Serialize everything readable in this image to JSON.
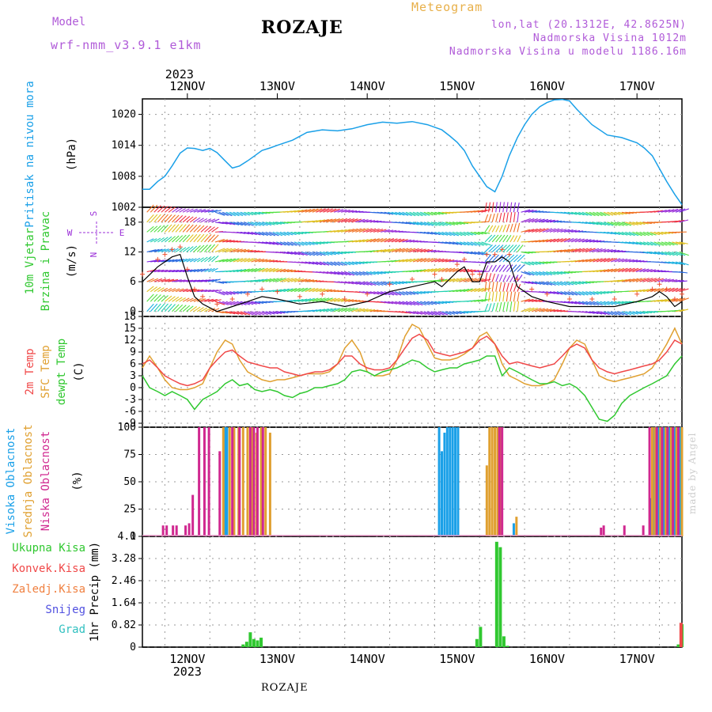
{
  "header": {
    "model_label": "Model",
    "model_name": "wrf-nmm_v3.9.1 e1km",
    "station": "ROZAJE",
    "meteogram_label": "Meteogram",
    "lonlat": "lon,lat (20.1312E, 42.8625N)",
    "altitude": "Nadmorska Visina 1012m",
    "altitude_model": "Nadmorska Visina u modelu 1186.16m",
    "made_by": "made by Angel",
    "footer_station": "ROZAJE"
  },
  "axis": {
    "year_label": "2023",
    "day_labels": [
      "12NOV",
      "13NOV",
      "14NOV",
      "15NOV",
      "16NOV",
      "17NOV"
    ]
  },
  "colors": {
    "pressure": "#1aa0e8",
    "temp2m": "#f04848",
    "sfc_temp": "#e0a030",
    "dewpt": "#30c830",
    "visoka": "#1aa0e8",
    "srednja": "#e0a030",
    "niska": "#d02890",
    "rain_total": "#30c830",
    "rain_conv": "#f04848"
  },
  "panel_labels": {
    "pressure": {
      "name": "Pritisak na nivou mora",
      "unit": "(hPa)"
    },
    "wind": {
      "name1": "10m Vjetar",
      "name2": "Brzina i Pravac",
      "unit": "(m/s)",
      "compass": [
        "S",
        "W",
        "E",
        "N"
      ]
    },
    "temp": {
      "name1": "2m Temp",
      "name2": "SFC Temp",
      "name3": "dewpt Temp",
      "unit": "(C)"
    },
    "cloud": {
      "name1": "Visoka Oblacnost",
      "name2": "Srednja Oblacnost",
      "name3": "Niska Oblacnost",
      "unit": "(%)"
    },
    "precip": {
      "unit": "1hr Precip (mm)",
      "legend": [
        "Ukupna Kisa",
        "Konvek.Kisa",
        "Zaledj.Kisa",
        "Snijeg",
        "Grad"
      ],
      "legend_colors": [
        "#30c830",
        "#f04848",
        "#f08040",
        "#5050e0",
        "#30c0c0"
      ]
    }
  },
  "chart_data": [
    {
      "type": "line",
      "title": "Pritisak na nivou mora",
      "ylabel": "(hPa)",
      "x_range_days": [
        11.5,
        17.5
      ],
      "ylim": [
        1002,
        1023
      ],
      "yticks": [
        "1002",
        "1008",
        "1014",
        "1020"
      ],
      "series": [
        {
          "x": [
            11.5,
            11.58,
            11.67,
            11.75,
            11.83,
            11.92,
            12.0,
            12.08,
            12.17,
            12.25,
            12.33,
            12.42,
            12.5,
            12.58,
            12.67,
            12.75,
            12.83,
            12.92,
            13.0,
            13.17,
            13.33,
            13.5,
            13.67,
            13.83,
            14.0,
            14.17,
            14.33,
            14.5,
            14.67,
            14.83,
            14.92,
            15.0,
            15.08,
            15.17,
            15.25,
            15.33,
            15.42,
            15.5,
            15.58,
            15.67,
            15.75,
            15.83,
            15.92,
            16.0,
            16.08,
            16.17,
            16.25,
            16.33,
            16.5,
            16.67,
            16.83,
            17.0,
            17.08,
            17.17,
            17.25,
            17.33,
            17.42,
            17.5
          ],
          "values": [
            1005.5,
            1005.5,
            1007,
            1008,
            1010,
            1012.5,
            1013.5,
            1013.4,
            1013,
            1013.4,
            1012.6,
            1011,
            1009.6,
            1010,
            1011,
            1012,
            1013,
            1013.5,
            1014,
            1015,
            1016.5,
            1017,
            1016.8,
            1017.2,
            1018,
            1018.5,
            1018.3,
            1018.6,
            1018,
            1017,
            1015.8,
            1014.6,
            1013,
            1010,
            1008,
            1006,
            1005,
            1008,
            1012,
            1015.5,
            1018,
            1020,
            1021.5,
            1022.3,
            1022.8,
            1022.9,
            1022.6,
            1021,
            1018,
            1016,
            1015.5,
            1014.5,
            1013.5,
            1012,
            1009.5,
            1007,
            1004.5,
            1002.5
          ]
        }
      ]
    },
    {
      "type": "line",
      "title": "10m Vjetar Brzina i Pravac",
      "ylabel": "(m/s)",
      "x_range_days": [
        11.5,
        17.5
      ],
      "ylim": [
        -1,
        21
      ],
      "yticks": [
        "0",
        "6",
        "12",
        "18"
      ],
      "series": [
        {
          "x": [
            11.5,
            11.67,
            11.75,
            11.83,
            11.92,
            12.0,
            12.08,
            12.17,
            12.33,
            12.5,
            12.67,
            12.83,
            13.0,
            13.25,
            13.5,
            13.75,
            14.0,
            14.25,
            14.5,
            14.75,
            14.83,
            15.0,
            15.08,
            15.17,
            15.25,
            15.33,
            15.42,
            15.5,
            15.58,
            15.67,
            15.83,
            16.0,
            16.25,
            16.5,
            16.75,
            17.0,
            17.17,
            17.25,
            17.33,
            17.42,
            17.5
          ],
          "values": [
            6,
            9,
            10,
            11,
            11.5,
            7,
            3,
            1.5,
            0,
            1,
            2,
            3,
            2.5,
            1.5,
            2,
            1,
            2,
            4,
            5,
            6,
            5,
            8,
            9,
            6,
            6,
            10,
            10,
            11,
            10,
            5,
            3,
            2,
            1,
            1,
            1,
            2,
            3,
            4,
            3,
            1,
            2
          ]
        }
      ]
    },
    {
      "type": "line",
      "title": "2m Temp / SFC Temp / dewpt Temp",
      "ylabel": "(C)",
      "x_range_days": [
        11.5,
        17.5
      ],
      "ylim": [
        -10,
        18
      ],
      "yticks": [
        "-9",
        "-6",
        "-3",
        "0",
        "3",
        "6",
        "9",
        "12",
        "15",
        "18"
      ],
      "series": [
        {
          "name": "2m Temp",
          "x": [
            11.5,
            11.58,
            11.67,
            11.75,
            11.83,
            11.92,
            12.0,
            12.08,
            12.17,
            12.25,
            12.33,
            12.42,
            12.5,
            12.58,
            12.67,
            12.75,
            12.83,
            12.92,
            13.0,
            13.08,
            13.17,
            13.25,
            13.33,
            13.42,
            13.5,
            13.58,
            13.67,
            13.75,
            13.83,
            13.92,
            14.0,
            14.08,
            14.17,
            14.25,
            14.33,
            14.42,
            14.5,
            14.58,
            14.67,
            14.75,
            14.83,
            14.92,
            15.0,
            15.08,
            15.17,
            15.25,
            15.33,
            15.42,
            15.5,
            15.58,
            15.67,
            15.75,
            15.83,
            15.92,
            16.0,
            16.08,
            16.17,
            16.25,
            16.33,
            16.42,
            16.5,
            16.58,
            16.67,
            16.75,
            16.83,
            16.92,
            17.0,
            17.08,
            17.17,
            17.25,
            17.33,
            17.42,
            17.5
          ],
          "values": [
            6,
            7,
            5,
            3,
            2,
            1,
            0.5,
            1,
            2,
            5,
            7,
            9,
            9.5,
            8,
            6.5,
            6,
            5.5,
            5,
            5,
            4,
            3.5,
            3,
            3.5,
            4,
            4,
            4.5,
            6,
            8,
            8,
            6,
            5,
            4.5,
            4.5,
            5,
            7,
            10,
            12.5,
            13.5,
            12,
            9,
            8.5,
            8,
            8.5,
            9,
            10,
            12,
            13,
            11,
            8,
            6,
            6.5,
            6,
            5.5,
            5,
            5.5,
            6,
            8,
            10,
            11,
            10,
            7,
            5,
            4,
            3.5,
            4,
            4.5,
            5,
            5.5,
            6,
            7,
            9,
            12,
            11
          ]
        },
        {
          "name": "SFC Temp",
          "x": [
            11.5,
            11.58,
            11.67,
            11.75,
            11.83,
            11.92,
            12.0,
            12.08,
            12.17,
            12.25,
            12.33,
            12.42,
            12.5,
            12.58,
            12.67,
            12.75,
            12.83,
            12.92,
            13.0,
            13.08,
            13.17,
            13.25,
            13.33,
            13.42,
            13.5,
            13.58,
            13.67,
            13.75,
            13.83,
            13.92,
            14.0,
            14.08,
            14.17,
            14.25,
            14.33,
            14.42,
            14.5,
            14.58,
            14.67,
            14.75,
            14.83,
            14.92,
            15.0,
            15.08,
            15.17,
            15.25,
            15.33,
            15.42,
            15.5,
            15.58,
            15.67,
            15.75,
            15.83,
            15.92,
            16.0,
            16.08,
            16.17,
            16.25,
            16.33,
            16.42,
            16.5,
            16.58,
            16.67,
            16.75,
            16.83,
            16.92,
            17.0,
            17.08,
            17.17,
            17.25,
            17.33,
            17.42,
            17.5
          ],
          "values": [
            5,
            8,
            5,
            2,
            0,
            -0.5,
            -0.5,
            0,
            1,
            5,
            9,
            12,
            11,
            7,
            4,
            3,
            2,
            1.5,
            2,
            2,
            2.5,
            3,
            3.5,
            3.5,
            3.5,
            4,
            6,
            10,
            12,
            9,
            4,
            3,
            3,
            3.5,
            7,
            13,
            16,
            15,
            11,
            7.5,
            7,
            7,
            7.5,
            8.5,
            10,
            13,
            14,
            11,
            6,
            3,
            2,
            1,
            0.5,
            0.5,
            1,
            2,
            6,
            10,
            12,
            11,
            7,
            3,
            2,
            1.5,
            2,
            2.5,
            3,
            3.5,
            5,
            8,
            11,
            15,
            11
          ]
        },
        {
          "name": "dewpt Temp",
          "x": [
            11.5,
            11.58,
            11.67,
            11.75,
            11.83,
            11.92,
            12.0,
            12.08,
            12.17,
            12.25,
            12.33,
            12.42,
            12.5,
            12.58,
            12.67,
            12.75,
            12.83,
            12.92,
            13.0,
            13.08,
            13.17,
            13.25,
            13.33,
            13.42,
            13.5,
            13.58,
            13.67,
            13.75,
            13.83,
            13.92,
            14.0,
            14.08,
            14.17,
            14.25,
            14.33,
            14.42,
            14.5,
            14.58,
            14.67,
            14.75,
            14.83,
            14.92,
            15.0,
            15.08,
            15.17,
            15.25,
            15.33,
            15.42,
            15.5,
            15.58,
            15.67,
            15.75,
            15.83,
            15.92,
            16.0,
            16.08,
            16.17,
            16.25,
            16.33,
            16.42,
            16.5,
            16.58,
            16.67,
            16.75,
            16.83,
            16.92,
            17.0,
            17.08,
            17.17,
            17.25,
            17.33,
            17.42,
            17.5
          ],
          "values": [
            3,
            0,
            -1,
            -2,
            -1,
            -2,
            -3,
            -5.5,
            -3,
            -2,
            -1,
            1,
            2,
            0.5,
            1,
            -0.5,
            -1,
            -0.5,
            -1,
            -2,
            -2.5,
            -1.5,
            -1,
            0,
            0,
            0.5,
            1,
            2,
            4,
            4.5,
            4,
            3,
            4,
            4.5,
            5,
            6,
            7,
            6.5,
            5,
            4,
            4.5,
            5,
            5,
            6,
            6.5,
            7,
            8,
            8,
            3,
            5,
            4,
            3,
            2,
            1,
            1,
            1.5,
            0.5,
            1,
            0,
            -2,
            -5,
            -8,
            -8.5,
            -7,
            -4,
            -2,
            -1,
            0,
            1,
            2,
            3,
            6,
            8
          ]
        }
      ]
    },
    {
      "type": "bar",
      "title": "Oblacnost",
      "ylabel": "(%)",
      "x_range_days": [
        11.5,
        17.5
      ],
      "ylim": [
        0,
        100
      ],
      "yticks": [
        "0",
        "25",
        "50",
        "75",
        "100"
      ],
      "series": [
        {
          "name": "Visoka Oblacnost",
          "x": [
            12.42,
            12.44,
            14.8,
            14.83,
            14.86,
            14.89,
            14.92,
            14.95,
            14.98,
            15.01,
            15.63,
            17.15,
            17.18,
            17.21,
            17.24,
            17.3,
            17.36,
            17.42,
            17.48
          ],
          "values": [
            100,
            100,
            100,
            78,
            95,
            100,
            100,
            100,
            100,
            100,
            12,
            35,
            100,
            100,
            100,
            100,
            100,
            100,
            100
          ]
        },
        {
          "name": "Srednja Oblacnost",
          "x": [
            12.4,
            12.47,
            12.52,
            12.57,
            12.62,
            12.67,
            12.72,
            12.77,
            12.82,
            12.87,
            12.92,
            15.33,
            15.36,
            15.39,
            15.42,
            15.45,
            15.48,
            15.66,
            17.17,
            17.2,
            17.26,
            17.32,
            17.38,
            17.44,
            17.5
          ],
          "values": [
            100,
            100,
            100,
            100,
            100,
            100,
            100,
            95,
            100,
            100,
            95,
            65,
            100,
            100,
            100,
            100,
            100,
            18,
            100,
            100,
            100,
            100,
            100,
            100,
            100
          ]
        },
        {
          "name": "Niska Oblacnost",
          "x": [
            11.73,
            11.77,
            11.84,
            11.88,
            11.98,
            12.02,
            12.06,
            12.13,
            12.19,
            12.24,
            12.36,
            12.5,
            12.58,
            12.7,
            12.74,
            12.78,
            12.84,
            15.47,
            15.5,
            16.6,
            16.63,
            16.86,
            17.97,
            17.07,
            17.14,
            17.22,
            17.28,
            17.34,
            17.4,
            17.46
          ],
          "values": [
            10,
            10,
            10,
            10,
            10,
            12,
            38,
            100,
            100,
            100,
            78,
            100,
            100,
            100,
            100,
            100,
            100,
            100,
            100,
            8,
            10,
            10,
            10,
            10,
            100,
            100,
            100,
            100,
            100,
            100
          ]
        }
      ]
    },
    {
      "type": "bar",
      "title": "1hr Precip",
      "ylabel": "1hr Precip (mm)",
      "x_range_days": [
        11.5,
        17.5
      ],
      "ylim": [
        0,
        4.1
      ],
      "yticks": [
        "0",
        "0.82",
        "1.64",
        "2.46",
        "3.28",
        "4.1"
      ],
      "series": [
        {
          "name": "Ukupna Kisa",
          "x": [
            12.62,
            12.66,
            12.7,
            12.74,
            12.78,
            12.82,
            15.22,
            15.26,
            15.44,
            15.48,
            15.52,
            15.56,
            17.46,
            17.5
          ],
          "values": [
            0.1,
            0.2,
            0.55,
            0.3,
            0.25,
            0.35,
            0.3,
            0.75,
            3.9,
            3.7,
            0.4,
            0.05,
            0.1,
            0.85
          ]
        },
        {
          "name": "Konvek.Kisa",
          "x": [
            17.49
          ],
          "values": [
            0.9
          ]
        }
      ]
    }
  ]
}
